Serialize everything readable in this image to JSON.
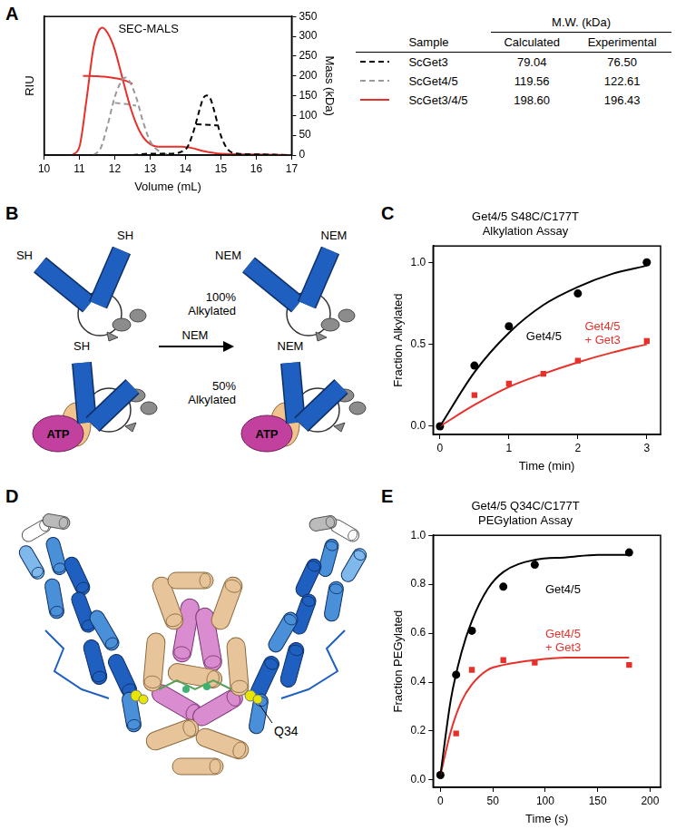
{
  "panel_labels": {
    "a": "A",
    "b": "B",
    "c": "C",
    "d": "D",
    "e": "E"
  },
  "chart_data": [
    {
      "type": "line",
      "x_label": "Volume (mL)",
      "y_label": "RIU",
      "y2_label": "Mass (kDa)",
      "xlim": [
        10,
        17
      ],
      "xticks": [
        10,
        11,
        12,
        13,
        14,
        15,
        16,
        17
      ],
      "ylim": [
        0,
        1
      ],
      "yticks": [],
      "y2lim": [
        0,
        350
      ],
      "y2ticks": [
        0,
        50,
        100,
        150,
        200,
        250,
        300,
        350
      ],
      "grid": false,
      "annotations": [
        {
          "text": "SEC-MALS",
          "x": 12.1,
          "y": 0.95
        }
      ],
      "series": [
        {
          "color": "#000000",
          "line_style": "dashed",
          "x": [
            12.5,
            13.0,
            13.5,
            14.0,
            14.2,
            14.4,
            14.5,
            14.6,
            14.7,
            14.8,
            15.0,
            15.2,
            15.5,
            16.0,
            17.0
          ],
          "values": [
            0,
            0.01,
            0.01,
            0.04,
            0.15,
            0.33,
            0.41,
            0.43,
            0.41,
            0.33,
            0.14,
            0.04,
            0.01,
            0.005,
            0
          ]
        },
        {
          "color": "#999999",
          "line_style": "dashed",
          "x": [
            11.4,
            11.6,
            11.8,
            12.0,
            12.2,
            12.3,
            12.4,
            12.6,
            12.8,
            13.0,
            13.3,
            13.6
          ],
          "values": [
            0,
            0.05,
            0.22,
            0.42,
            0.54,
            0.56,
            0.54,
            0.42,
            0.24,
            0.1,
            0.02,
            0
          ]
        },
        {
          "color": "#e8302a",
          "line_style": "solid",
          "x": [
            10.8,
            11.0,
            11.2,
            11.4,
            11.55,
            11.65,
            11.8,
            12.0,
            12.2,
            12.4,
            12.6,
            12.8,
            13.0,
            13.3,
            13.6,
            13.9,
            14.2,
            14.5,
            15.0,
            16.0,
            17.0
          ],
          "values": [
            0,
            0.06,
            0.4,
            0.78,
            0.9,
            0.92,
            0.88,
            0.76,
            0.57,
            0.38,
            0.23,
            0.13,
            0.08,
            0.06,
            0.06,
            0.06,
            0.05,
            0.03,
            0.01,
            0.005,
            0
          ]
        },
        {
          "color": "#000000",
          "line_style": "dashed",
          "axis": "y2",
          "x": [
            14.3,
            14.5,
            14.7,
            14.9
          ],
          "values": [
            78,
            77,
            76,
            75
          ]
        },
        {
          "color": "#999999",
          "line_style": "dashed",
          "axis": "y2",
          "x": [
            12.0,
            12.2,
            12.4,
            12.6
          ],
          "values": [
            132,
            130,
            128,
            125
          ]
        },
        {
          "color": "#e8302a",
          "line_style": "solid",
          "axis": "y2",
          "x": [
            11.1,
            11.3,
            11.5,
            11.7,
            11.9,
            12.1,
            12.3,
            12.5
          ],
          "values": [
            200,
            200,
            199,
            198,
            196,
            193,
            188,
            180
          ]
        }
      ]
    },
    {
      "type": "scatter",
      "title": [
        "Get4/5 S48C/C177T",
        "Alkylation Assay"
      ],
      "x_label": "Time (min)",
      "y_label": "Fraction Alkylated",
      "xlim": [
        -0.1,
        3.2
      ],
      "xticks": [
        0,
        1,
        2,
        3
      ],
      "ylim": [
        -0.05,
        1.1
      ],
      "yticks": [
        {
          "value": 0,
          "label": "0.0"
        },
        {
          "value": 0.5,
          "label": "0.5"
        },
        {
          "value": 1,
          "label": "1.0"
        }
      ],
      "grid": false,
      "annotations": [
        {
          "text": "Get4/5",
          "x": 1.25,
          "y": 0.58,
          "color": "#000000"
        },
        {
          "text": [
            "Get4/5",
            "+ Get3"
          ],
          "x": 2.1,
          "y": 0.64,
          "color": "#e8302a"
        }
      ],
      "series": [
        {
          "type": "line",
          "color": "#000000",
          "x": [
            0,
            0.5,
            1,
            1.5,
            2,
            2.5,
            3
          ],
          "values": [
            0,
            0.33,
            0.57,
            0.74,
            0.85,
            0.93,
            0.98
          ]
        },
        {
          "type": "line",
          "color": "#e8302a",
          "x": [
            0,
            0.5,
            1,
            1.5,
            2,
            2.5,
            3
          ],
          "values": [
            0,
            0.13,
            0.24,
            0.32,
            0.39,
            0.45,
            0.5
          ]
        },
        {
          "type": "scatter",
          "marker": "circle",
          "color": "#000000",
          "x": [
            0,
            0.5,
            1,
            2,
            3
          ],
          "values": [
            0,
            0.37,
            0.61,
            0.81,
            1.0
          ]
        },
        {
          "type": "scatter",
          "marker": "square",
          "color": "#e8302a",
          "x": [
            0,
            0.5,
            1,
            1.5,
            2,
            3
          ],
          "values": [
            0,
            0.19,
            0.26,
            0.32,
            0.4,
            0.52
          ]
        }
      ]
    },
    {
      "type": "scatter",
      "title": [
        "Get4/5 Q34C/C177T",
        "PEGylation Assay"
      ],
      "x_label": "Time (s)",
      "y_label": "Fraction PEGylated",
      "xlim": [
        -7,
        210
      ],
      "xticks": [
        0,
        50,
        100,
        150,
        200
      ],
      "ylim": [
        -0.03,
        1.0
      ],
      "yticks": [
        {
          "value": 0,
          "label": "0.0"
        },
        {
          "value": 0.2,
          "label": "0.2"
        },
        {
          "value": 0.4,
          "label": "0.4"
        },
        {
          "value": 0.6,
          "label": "0.6"
        },
        {
          "value": 0.8,
          "label": "0.8"
        },
        {
          "value": 1,
          "label": "1.0"
        }
      ],
      "grid": false,
      "annotations": [
        {
          "text": "Get4/5",
          "x": 100,
          "y": 0.8,
          "color": "#000000"
        },
        {
          "text": [
            "Get4/5",
            "+ Get3"
          ],
          "x": 100,
          "y": 0.62,
          "color": "#e8302a"
        }
      ],
      "series": [
        {
          "type": "line",
          "color": "#000000",
          "x": [
            0,
            10,
            20,
            30,
            45,
            60,
            90,
            120,
            150,
            180
          ],
          "values": [
            0.02,
            0.33,
            0.52,
            0.65,
            0.78,
            0.85,
            0.9,
            0.91,
            0.92,
            0.92
          ]
        },
        {
          "type": "line",
          "color": "#e8302a",
          "x": [
            0,
            10,
            20,
            30,
            45,
            60,
            90,
            120,
            150,
            180
          ],
          "values": [
            0.02,
            0.2,
            0.32,
            0.39,
            0.45,
            0.47,
            0.49,
            0.5,
            0.5,
            0.5
          ]
        },
        {
          "type": "scatter",
          "marker": "circle",
          "color": "#000000",
          "x": [
            0,
            15,
            30,
            60,
            90,
            180
          ],
          "values": [
            0.02,
            0.43,
            0.61,
            0.79,
            0.88,
            0.93
          ]
        },
        {
          "type": "scatter",
          "marker": "square",
          "color": "#e8302a",
          "x": [
            0,
            15,
            30,
            60,
            90,
            180
          ],
          "values": [
            0.02,
            0.19,
            0.45,
            0.49,
            0.48,
            0.47
          ]
        }
      ]
    }
  ],
  "table": {
    "header": "M.W. (kDa)",
    "columns": [
      "Sample",
      "Calculated",
      "Experimental"
    ],
    "rows": [
      {
        "sample": "ScGet3",
        "calculated": "79.04",
        "experimental": "76.50",
        "color": "#000000",
        "line_style": "dashed"
      },
      {
        "sample": "ScGet4/5",
        "calculated": "119.56",
        "experimental": "122.61",
        "color": "#999999",
        "line_style": "dashed"
      },
      {
        "sample": "ScGet3/4/5",
        "calculated": "198.60",
        "experimental": "196.43",
        "color": "#e8302a",
        "line_style": "solid"
      }
    ]
  },
  "diagram_b": {
    "before_free": [
      "SH",
      "SH"
    ],
    "after_free": [
      "NEM",
      "NEM"
    ],
    "after_free_note": [
      "100%",
      "Alkylated"
    ],
    "reagent": "NEM",
    "before_bound": [
      "SH"
    ],
    "before_bound_nucleotide": "ATP",
    "after_bound": [
      "NEM"
    ],
    "after_bound_nucleotide": "ATP",
    "after_bound_note": [
      "50%",
      "Alkylated"
    ]
  },
  "diagram_d": {
    "label": "Q34"
  }
}
